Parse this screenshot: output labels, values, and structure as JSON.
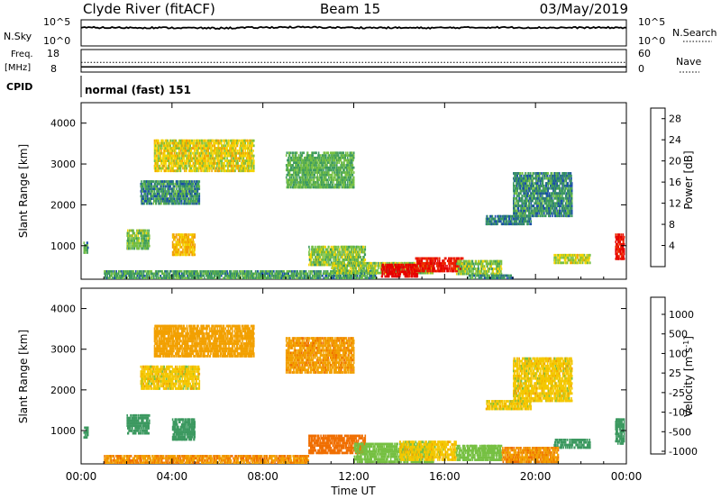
{
  "header": {
    "station": "Clyde River (fitACF)",
    "beam": "Beam 15",
    "date": "03/May/2019"
  },
  "strip_nsky": {
    "left_label": "N.Sky",
    "left_ticks": [
      "10^5",
      "10^0"
    ],
    "right_label": "N.Search",
    "right_ticks": [
      "10^5",
      "10^0"
    ]
  },
  "strip_freq": {
    "left_label_1": "Freq.",
    "left_label_2": "[MHz]",
    "left_ticks": [
      "18",
      "8"
    ],
    "right_label": "Nave",
    "right_ticks": [
      "60",
      "0"
    ]
  },
  "cpid": {
    "label": "CPID",
    "value": "normal (fast) 151"
  },
  "x_axis": {
    "label": "Time UT",
    "ticks": [
      "00:00",
      "04:00",
      "08:00",
      "12:00",
      "16:00",
      "20:00",
      "00:00"
    ]
  },
  "colors": {
    "power_scale": [
      "#0000ff",
      "#1a4fa8",
      "#3c9960",
      "#76c043",
      "#f4d400",
      "#f2a000",
      "#f06e00",
      "#ee2a00",
      "#e60000"
    ],
    "velocity_scale": [
      "#e60000",
      "#ee2a00",
      "#f06e00",
      "#f2a000",
      "#f4c800",
      "#c0c0c0",
      "#76c043",
      "#3c9960",
      "#1a4fa8",
      "#0000ff"
    ],
    "ground_scatter": "#808080"
  },
  "chart_data": [
    {
      "type": "heatmap",
      "panel": "power",
      "ylabel": "Slant Range [km]",
      "yticks": [
        "1000",
        "2000",
        "3000",
        "4000"
      ],
      "ylim": [
        180,
        4500
      ],
      "xlabel": "Time UT",
      "xlim_hours": [
        0,
        24
      ],
      "colorbar": {
        "label": "Power [dB]",
        "ticks": [
          "4",
          "8",
          "12",
          "16",
          "20",
          "24",
          "28"
        ],
        "range": [
          0,
          30
        ]
      },
      "patches": [
        {
          "t0": 0.1,
          "t1": 0.3,
          "r0": 800,
          "r1": 1100,
          "value": 9
        },
        {
          "t0": 2.0,
          "t1": 3.0,
          "r0": 900,
          "r1": 1400,
          "value": 11
        },
        {
          "t0": 4.0,
          "t1": 5.0,
          "r0": 750,
          "r1": 1300,
          "value": 17
        },
        {
          "t0": 2.6,
          "t1": 5.2,
          "r0": 2000,
          "r1": 2600,
          "value": 8
        },
        {
          "t0": 3.2,
          "t1": 7.6,
          "r0": 2800,
          "r1": 3600,
          "value": 15
        },
        {
          "t0": 9.0,
          "t1": 12.0,
          "r0": 2400,
          "r1": 3300,
          "value": 10
        },
        {
          "t0": 10.0,
          "t1": 12.5,
          "r0": 500,
          "r1": 1000,
          "value": 12
        },
        {
          "t0": 1.0,
          "t1": 13.0,
          "r0": 180,
          "r1": 400,
          "value": 9
        },
        {
          "t0": 11.0,
          "t1": 15.5,
          "r0": 300,
          "r1": 600,
          "value": 12
        },
        {
          "t0": 13.2,
          "t1": 14.8,
          "r0": 220,
          "r1": 560,
          "value": 29
        },
        {
          "t0": 14.7,
          "t1": 16.8,
          "r0": 350,
          "r1": 720,
          "value": 27
        },
        {
          "t0": 16.5,
          "t1": 18.5,
          "r0": 280,
          "r1": 650,
          "value": 12
        },
        {
          "t0": 17.8,
          "t1": 19.8,
          "r0": 1500,
          "r1": 1750,
          "value": 7
        },
        {
          "t0": 19.0,
          "t1": 21.6,
          "r0": 1700,
          "r1": 2800,
          "value": 8
        },
        {
          "t0": 20.8,
          "t1": 22.4,
          "r0": 550,
          "r1": 800,
          "value": 14
        },
        {
          "t0": 23.5,
          "t1": 23.9,
          "r0": 650,
          "r1": 1300,
          "value": 27
        },
        {
          "t0": 17.0,
          "t1": 19.0,
          "r0": 180,
          "r1": 300,
          "value": 8
        }
      ]
    },
    {
      "type": "heatmap",
      "panel": "velocity",
      "ylabel": "Slant Range [km]",
      "yticks": [
        "1000",
        "2000",
        "3000",
        "4000"
      ],
      "ylim": [
        180,
        4500
      ],
      "xlabel": "Time UT",
      "xlim_hours": [
        0,
        24
      ],
      "colorbar": {
        "label": "Velocity [m s-1]",
        "ticks": [
          "1000",
          "500",
          "100",
          "25",
          "-25",
          "-100",
          "-500",
          "-1000"
        ],
        "range": [
          -1200,
          1200
        ]
      },
      "patches": [
        {
          "t0": 0.1,
          "t1": 0.3,
          "r0": 800,
          "r1": 1100,
          "value": 150
        },
        {
          "t0": 2.0,
          "t1": 3.0,
          "r0": 900,
          "r1": 1400,
          "value": 200
        },
        {
          "t0": 4.0,
          "t1": 5.0,
          "r0": 750,
          "r1": 1300,
          "value": 250
        },
        {
          "t0": 2.6,
          "t1": 5.2,
          "r0": 2000,
          "r1": 2600,
          "value": 0
        },
        {
          "t0": 3.2,
          "t1": 7.6,
          "r0": 2800,
          "r1": 3600,
          "value": -60
        },
        {
          "t0": 9.0,
          "t1": 12.0,
          "r0": 2400,
          "r1": 3300,
          "value": -80
        },
        {
          "t0": 10.0,
          "t1": 12.5,
          "r0": 420,
          "r1": 900,
          "value": -200
        },
        {
          "t0": 1.0,
          "t1": 10.0,
          "r0": 180,
          "r1": 400,
          "value": -90
        },
        {
          "t0": 12.0,
          "t1": 15.5,
          "r0": 200,
          "r1": 700,
          "value": 60
        },
        {
          "t0": 14.0,
          "t1": 16.5,
          "r0": 250,
          "r1": 750,
          "value": 0
        },
        {
          "t0": 16.5,
          "t1": 18.5,
          "r0": 250,
          "r1": 650,
          "value": 70
        },
        {
          "t0": 17.8,
          "t1": 19.8,
          "r0": 1500,
          "r1": 1750,
          "value": 0
        },
        {
          "t0": 19.0,
          "t1": 21.6,
          "r0": 1700,
          "r1": 2800,
          "value": 0
        },
        {
          "t0": 20.8,
          "t1": 22.4,
          "r0": 550,
          "r1": 800,
          "value": 300
        },
        {
          "t0": 23.5,
          "t1": 23.9,
          "r0": 650,
          "r1": 1300,
          "value": 200
        },
        {
          "t0": 18.5,
          "t1": 21.0,
          "r0": 200,
          "r1": 600,
          "value": -90
        }
      ]
    },
    {
      "type": "line",
      "panel": "nsky",
      "series": [
        {
          "x_hours": [
            0,
            3,
            6,
            9,
            12,
            15,
            18,
            21,
            24
          ],
          "values": [
            0.7,
            0.7,
            0.68,
            0.72,
            0.7,
            0.69,
            0.71,
            0.7,
            0.7
          ],
          "units": "fraction of strip height"
        }
      ]
    },
    {
      "type": "line",
      "panel": "freq",
      "series": [
        {
          "x_hours": [
            0,
            24
          ],
          "values": [
            10.3,
            10.3
          ],
          "units": "MHz"
        },
        {
          "x_hours": [
            0,
            24
          ],
          "values": [
            12.3,
            12.3
          ],
          "units": "MHz",
          "style": "dotted"
        }
      ]
    }
  ]
}
